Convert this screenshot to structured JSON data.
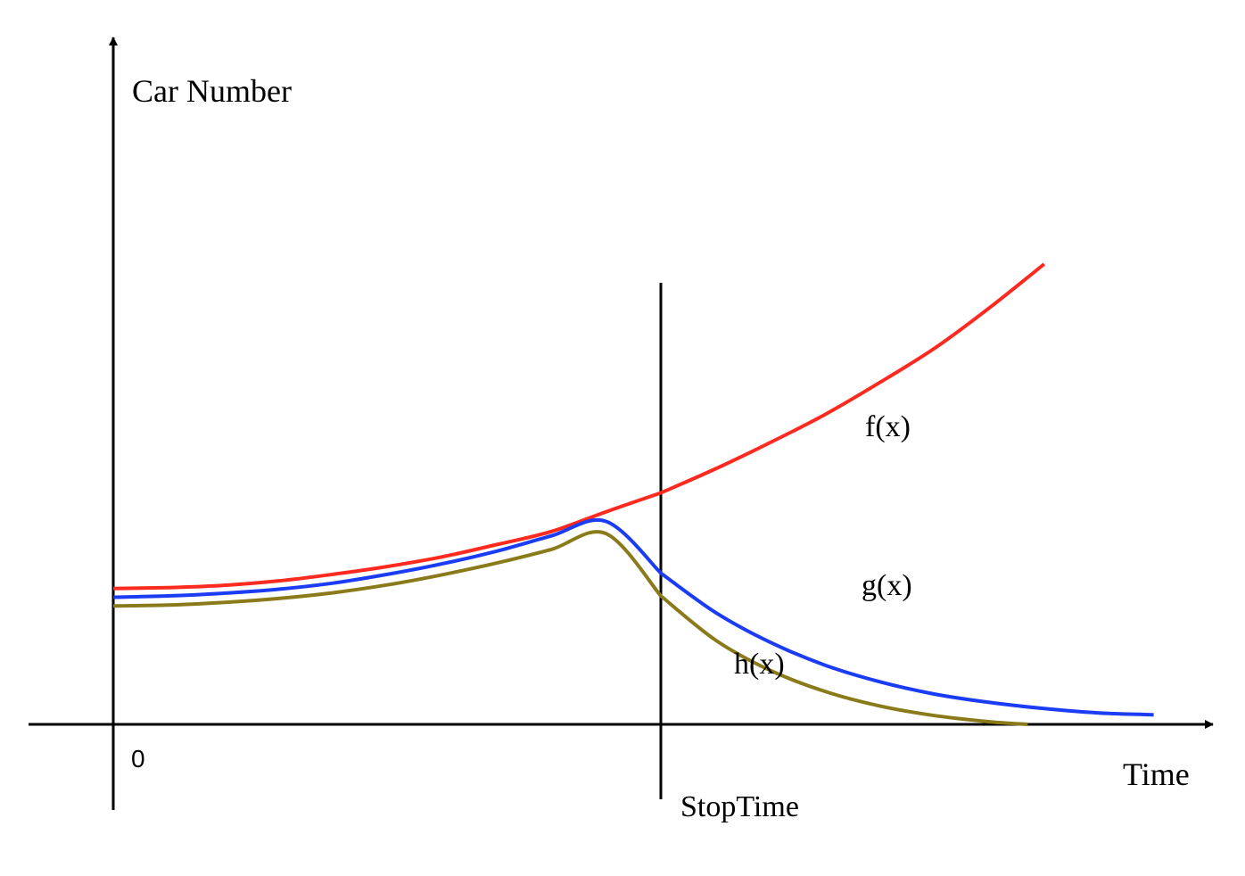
{
  "chart_data": {
    "type": "line",
    "title": "",
    "xlabel": "Time",
    "ylabel": "Car Number",
    "origin_label": "0",
    "marker_label": "StopTime",
    "grid": false,
    "legend": "none",
    "series": [
      {
        "name": "f(x)",
        "color": "#ff2a1f",
        "x": [
          0,
          1,
          2,
          3,
          4,
          5,
          6,
          7,
          8,
          9,
          10,
          11,
          12,
          13,
          14,
          15,
          16,
          17
        ],
        "values": [
          3.1,
          3.12,
          3.17,
          3.27,
          3.42,
          3.6,
          3.82,
          4.1,
          4.4,
          4.85,
          5.28,
          5.83,
          6.43,
          7.07,
          7.8,
          8.58,
          9.5,
          10.5
        ]
      },
      {
        "name": "g(x)",
        "color": "#1a3cf5",
        "x": [
          0,
          1,
          2,
          3,
          4,
          5,
          6,
          7,
          8,
          9,
          10,
          11,
          12,
          13,
          14,
          15,
          16,
          17,
          18,
          19
        ],
        "values": [
          2.9,
          2.93,
          2.99,
          3.08,
          3.22,
          3.42,
          3.66,
          3.95,
          4.3,
          4.63,
          3.45,
          2.55,
          1.87,
          1.35,
          0.97,
          0.69,
          0.5,
          0.36,
          0.26,
          0.22
        ]
      },
      {
        "name": "h(x)",
        "color": "#8a7a1a",
        "x": [
          0,
          1,
          2,
          3,
          4,
          5,
          6,
          7,
          8,
          9,
          10,
          11,
          12,
          13,
          14,
          15,
          16,
          16.7
        ],
        "values": [
          2.7,
          2.72,
          2.78,
          2.87,
          3.0,
          3.18,
          3.41,
          3.68,
          3.99,
          4.35,
          2.93,
          1.92,
          1.23,
          0.75,
          0.42,
          0.2,
          0.06,
          0.0
        ]
      }
    ],
    "stop_x": 10,
    "xlim": [
      0,
      20
    ],
    "ylim": [
      0,
      10.5
    ]
  }
}
